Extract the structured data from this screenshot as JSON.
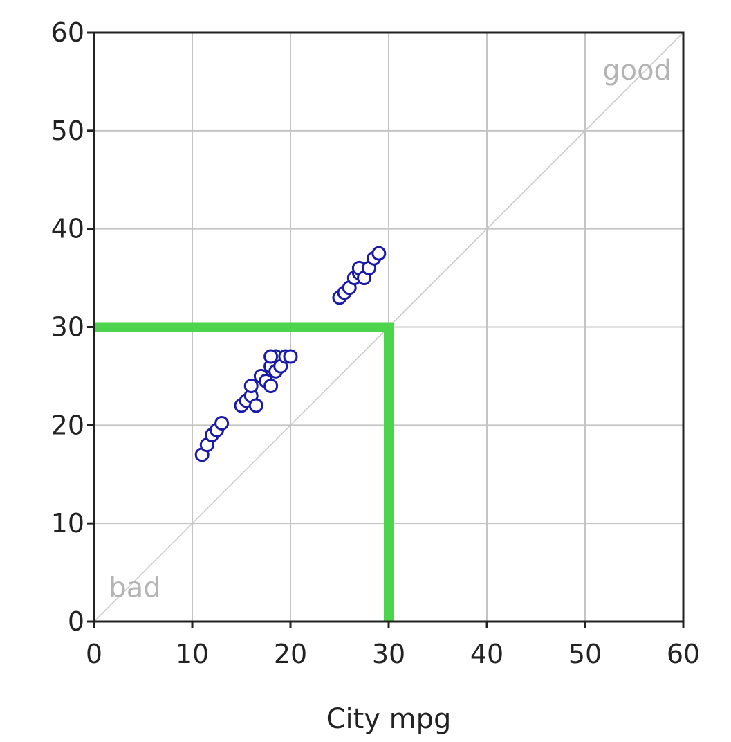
{
  "chart_data": {
    "type": "scatter",
    "xlabel": "City mpg",
    "ylabel": "",
    "xlim": [
      0,
      60
    ],
    "ylim": [
      0,
      60
    ],
    "x_ticks": [
      "0",
      "10",
      "20",
      "30",
      "40",
      "50",
      "60"
    ],
    "y_ticks": [
      "0",
      "10",
      "20",
      "30",
      "40",
      "50",
      "60"
    ],
    "grid": true,
    "series": [
      {
        "color": "#1a1aa8",
        "marker": "open-circle",
        "points": [
          [
            11,
            17
          ],
          [
            11.5,
            18
          ],
          [
            12,
            19
          ],
          [
            12.5,
            19.5
          ],
          [
            13,
            20.2
          ],
          [
            15,
            22
          ],
          [
            15.5,
            22.5
          ],
          [
            16,
            23
          ],
          [
            16.5,
            22
          ],
          [
            16,
            24
          ],
          [
            17,
            25
          ],
          [
            17.5,
            24.5
          ],
          [
            18,
            24
          ],
          [
            18,
            26
          ],
          [
            18.5,
            25.5
          ],
          [
            18.5,
            27
          ],
          [
            19,
            26
          ],
          [
            19.5,
            27
          ],
          [
            20,
            27
          ],
          [
            18,
            27
          ],
          [
            25,
            33
          ],
          [
            25.5,
            33.5
          ],
          [
            26,
            34
          ],
          [
            26.5,
            35
          ],
          [
            27,
            35.5
          ],
          [
            27,
            36
          ],
          [
            27.5,
            35
          ],
          [
            28,
            36
          ],
          [
            28.5,
            37
          ],
          [
            29,
            37.5
          ]
        ]
      }
    ],
    "diagonal_line": {
      "from": [
        0,
        0
      ],
      "to": [
        60,
        60
      ],
      "color": "#c8c8c8"
    },
    "threshold": {
      "x": 30,
      "y": 30,
      "color": "#4cd44c"
    },
    "annotations": [
      {
        "text": "good",
        "x": 58.8,
        "y": 55.2
      },
      {
        "text": "bad",
        "x": 1.5,
        "y": 2.5
      }
    ]
  }
}
